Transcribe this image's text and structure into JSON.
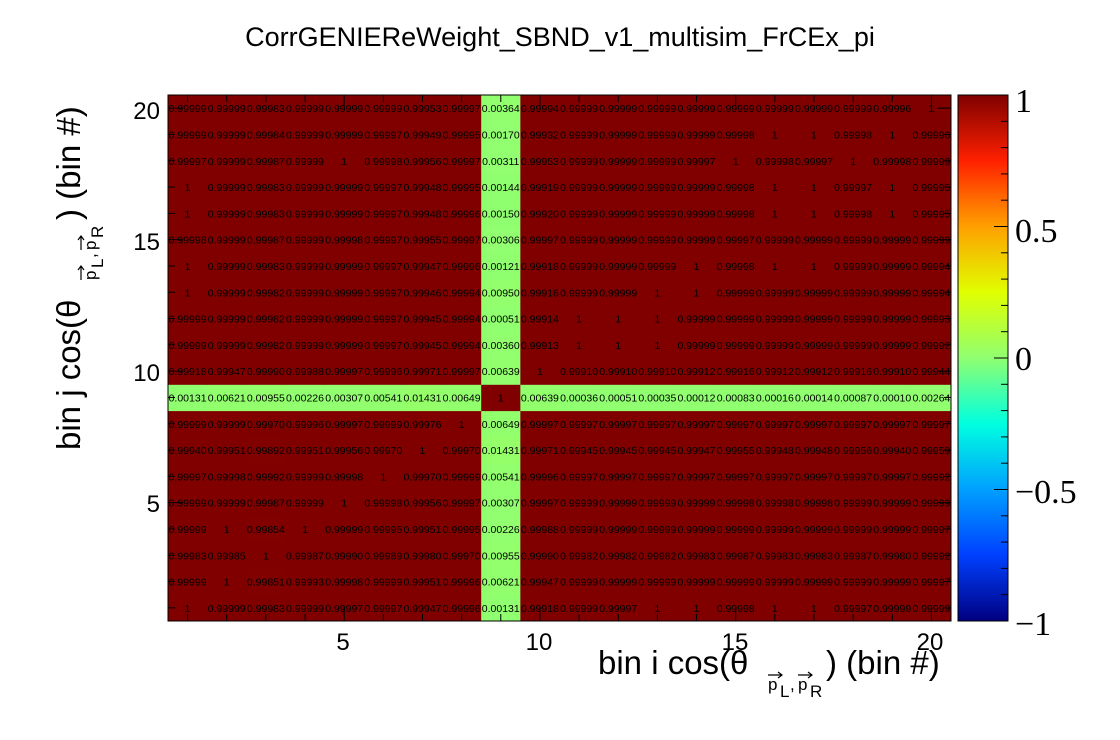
{
  "chart_data": {
    "type": "heatmap",
    "title": "CorrGENIEReWeight_SBND_v1_multisim_FrCEx_pi",
    "xlabel": {
      "main": "bin i cos(θ",
      "sub": "p",
      "sub_mid": "L",
      "sub_sep": ",",
      "sub_end": "R",
      "tail": ") (bin #)"
    },
    "ylabel": {
      "main": "bin j cos(θ",
      "sub": "p",
      "sub_mid": "L",
      "sub_sep": ",",
      "sub_end": "R",
      "tail": ") (bin #)"
    },
    "x_range": [
      0.5,
      20.5
    ],
    "y_range": [
      0.5,
      20.5
    ],
    "x_ticks": [
      "5",
      "10",
      "15",
      "20"
    ],
    "y_ticks": [
      "5",
      "10",
      "15",
      "20"
    ],
    "nbins": 20,
    "z_range": [
      -1,
      1
    ],
    "colorbar_ticks": [
      "1",
      "0.5",
      "0",
      "−0.5",
      "−1"
    ],
    "highlight_row": 9,
    "highlight_col": 9,
    "highlight_value": 0.0068,
    "default_value": 0.9999,
    "cell_labels": [
      [
        "1",
        "0.99999",
        "0.99983",
        "0.99999",
        "0.99997",
        "0.99997",
        "0.99947",
        "0.99996",
        "0.00131",
        "0.99918",
        "0.99999",
        "0.99997",
        "1",
        "1",
        "0.99998",
        "1",
        "1",
        "0.99997",
        "0.99999",
        "0.99999"
      ],
      [
        "0.99999",
        "1",
        "0.99851",
        "0.99993",
        "0.99998",
        "0.99999",
        "0.99951",
        "0.99996",
        "0.00621",
        "0.99947",
        "0.99999",
        "0.99999",
        "0.99999",
        "0.99999",
        "0.99999",
        "0.99999",
        "0.99999",
        "0.99999",
        "0.99999",
        "0.99997"
      ],
      [
        "0.99983",
        "0.99985",
        "1",
        "0.99987",
        "0.99990",
        "0.99989",
        "0.99980",
        "0.99970",
        "0.00955",
        "0.99990",
        "0.99982",
        "0.99982",
        "0.99982",
        "0.99983",
        "0.99987",
        "0.99983",
        "0.99983",
        "0.99987",
        "0.99980",
        "0.99992"
      ],
      [
        "0.99999",
        "1",
        "0.99854",
        "1",
        "0.99999",
        "0.99995",
        "0.99951",
        "0.99995",
        "0.00226",
        "0.99988",
        "0.99999",
        "0.99999",
        "0.99999",
        "0.99999",
        "0.99999",
        "0.99999",
        "0.99999",
        "0.99999",
        "0.99999",
        "0.99997"
      ],
      [
        "0.99999",
        "0.99999",
        "0.99987",
        "0.99999",
        "1",
        "0.99998",
        "0.99956",
        "0.99997",
        "0.00307",
        "0.99997",
        "0.99999",
        "0.99999",
        "0.99999",
        "0.99999",
        "0.99998",
        "0.99998",
        "0.99998",
        "0.99999",
        "0.99999",
        "0.99999"
      ],
      [
        "0.99997",
        "0.99998",
        "0.99992",
        "0.99999",
        "0.99998",
        "1",
        "0.99970",
        "0.99999",
        "0.00541",
        "0.99996",
        "0.99997",
        "0.99997",
        "0.99997",
        "0.99997",
        "0.99997",
        "0.99997",
        "0.99997",
        "0.99997",
        "0.99997",
        "0.99992"
      ],
      [
        "0.99940",
        "0.99951",
        "0.99892",
        "0.99951",
        "0.99956",
        "0.99970",
        "1",
        "0.99970",
        "0.01431",
        "0.99971",
        "0.99945",
        "0.99945",
        "0.99945",
        "0.99947",
        "0.99955",
        "0.99948",
        "0.99948",
        "0.99956",
        "0.99940",
        "0.99959"
      ],
      [
        "0.99999",
        "0.99999",
        "0.99970",
        "0.99996",
        "0.99997",
        "0.99999",
        "0.99976",
        "1",
        "0.00649",
        "0.99997",
        "0.99997",
        "0.99997",
        "0.99997",
        "0.99997",
        "0.99997",
        "0.99997",
        "0.99997",
        "0.99997",
        "0.99997",
        "0.99997"
      ],
      [
        "0.00131",
        "0.00621",
        "0.00955",
        "0.00226",
        "0.00307",
        "0.00541",
        "0.01431",
        "0.00649",
        "1",
        "0.00639",
        "0.00036",
        "0.00051",
        "0.00035",
        "0.00012",
        "0.00083",
        "0.00016",
        "0.00014",
        "0.00087",
        "0.00010",
        "0.00264"
      ],
      [
        "0.99918",
        "0.99947",
        "0.99990",
        "0.99988",
        "0.99997",
        "0.99996",
        "0.99971",
        "0.99997",
        "0.00639",
        "1",
        "0.99910",
        "0.99910",
        "0.99910",
        "0.99912",
        "0.99916",
        "0.99912",
        "0.99912",
        "0.99916",
        "0.99910",
        "0.99944"
      ],
      [
        "0.99999",
        "0.99999",
        "0.99982",
        "0.99999",
        "0.99999",
        "0.99997",
        "0.99945",
        "0.99994",
        "0.00360",
        "0.99913",
        "1",
        "1",
        "1",
        "0.99999",
        "0.99999",
        "0.99999",
        "0.99999",
        "0.99999",
        "0.99999",
        "0.99992"
      ],
      [
        "0.99999",
        "0.99999",
        "0.99982",
        "0.99999",
        "0.99999",
        "0.99997",
        "0.99945",
        "0.99994",
        "0.00051",
        "0.99914",
        "1",
        "1",
        "1",
        "0.99999",
        "0.99999",
        "0.99999",
        "0.99999",
        "0.99999",
        "0.99999",
        "0.99993"
      ],
      [
        "1",
        "0.99999",
        "0.99982",
        "0.99999",
        "0.99999",
        "0.99997",
        "0.99946",
        "0.99994",
        "0.00950",
        "0.99916",
        "0.99999",
        "0.99999",
        "1",
        "1",
        "0.99999",
        "0.99999",
        "0.99999",
        "0.99999",
        "0.99999",
        "0.99994"
      ],
      [
        "1",
        "0.99999",
        "0.99983",
        "0.99999",
        "0.99999",
        "0.99997",
        "0.99947",
        "0.99996",
        "0.00121",
        "0.99918",
        "0.99999",
        "0.99999",
        "0.99999",
        "1",
        "0.99998",
        "1",
        "1",
        "0.99999",
        "0.99999",
        "0.99994"
      ],
      [
        "0.99998",
        "0.99999",
        "0.99987",
        "0.99999",
        "0.99998",
        "0.99997",
        "0.99955",
        "0.99997",
        "0.00306",
        "0.99997",
        "0.99999",
        "0.99999",
        "0.99999",
        "0.99999",
        "0.99997",
        "0.99999",
        "0.99999",
        "0.99999",
        "0.99999",
        "0.99999"
      ],
      [
        "1",
        "0.99999",
        "0.99983",
        "0.99999",
        "0.99999",
        "0.99997",
        "0.99948",
        "0.99996",
        "0.00150",
        "0.99920",
        "0.99999",
        "0.99999",
        "0.99999",
        "0.99999",
        "0.99998",
        "1",
        "1",
        "0.99998",
        "1",
        "0.99995"
      ],
      [
        "1",
        "0.99999",
        "0.99983",
        "0.99999",
        "0.99999",
        "0.99997",
        "0.99948",
        "0.99995",
        "0.00144",
        "0.99919",
        "0.99999",
        "0.99999",
        "0.99999",
        "0.99999",
        "0.99998",
        "1",
        "1",
        "0.99997",
        "1",
        "0.99995"
      ],
      [
        "0.99997",
        "0.99999",
        "0.99987",
        "0.99999",
        "1",
        "0.99998",
        "0.99956",
        "0.99997",
        "0.00311",
        "0.99953",
        "0.99999",
        "0.99999",
        "0.99999",
        "0.99997",
        "1",
        "0.99998",
        "0.99997",
        "1",
        "0.99998",
        "0.99999"
      ],
      [
        "0.99999",
        "0.99999",
        "0.99984",
        "0.99999",
        "0.99999",
        "0.99997",
        "0.99949",
        "0.99995",
        "0.00170",
        "0.99932",
        "0.99999",
        "0.99999",
        "0.99999",
        "0.99999",
        "0.99998",
        "1",
        "1",
        "0.99998",
        "1",
        "0.99996"
      ],
      [
        "0.99999",
        "0.99999",
        "0.99983",
        "0.99999",
        "0.99999",
        "0.99999",
        "0.99953",
        "0.99997",
        "0.00364",
        "0.99994",
        "0.99999",
        "0.99999",
        "0.99999",
        "0.99999",
        "0.99999",
        "0.99999",
        "0.99999",
        "0.99999",
        "0.99996",
        "1"
      ]
    ]
  }
}
